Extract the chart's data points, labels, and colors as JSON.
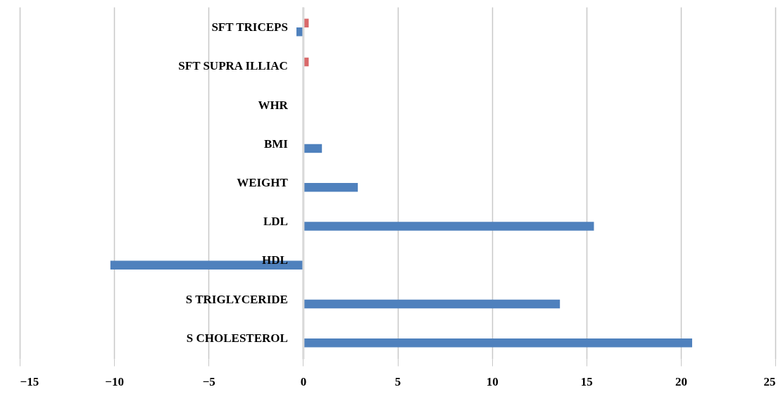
{
  "chart_data": {
    "type": "bar",
    "orientation": "horizontal",
    "categories": [
      "SFT TRICEPS",
      "SFT SUPRA ILLIAC",
      "WHR",
      "BMI",
      "WEIGHT",
      "LDL",
      "HDL",
      "S TRIGLYCERIDE",
      "S CHOLESTEROL"
    ],
    "series": [
      {
        "color": "#d9696a",
        "values": [
          0.3,
          0.3,
          null,
          null,
          null,
          null,
          null,
          null,
          null
        ]
      },
      {
        "color": "#4f81bd",
        "values": [
          -0.35,
          null,
          null,
          1.0,
          2.9,
          15.4,
          -10.2,
          13.6,
          20.6
        ]
      }
    ],
    "xlim": [
      -15,
      25
    ],
    "xticks": [
      -15,
      -10,
      -5,
      0,
      5,
      10,
      15,
      20,
      25
    ],
    "grid": "x"
  }
}
